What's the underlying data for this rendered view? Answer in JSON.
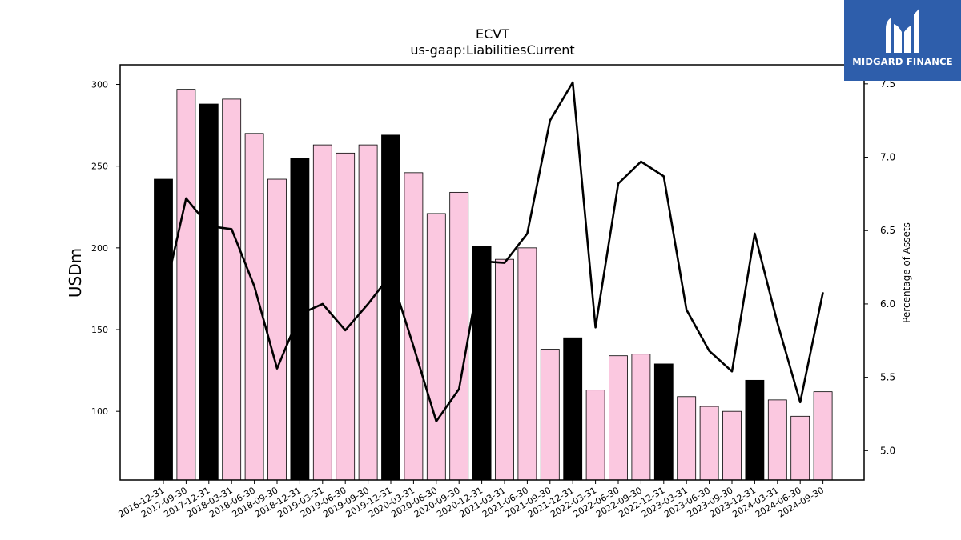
{
  "chart_data": {
    "type": "bar+line",
    "title": "ECVT",
    "subtitle": "us-gaap:LiabilitiesCurrent",
    "xlabel": "",
    "ylabel": "USDm",
    "y2label": "Percentage of Assets",
    "ylim": [
      58,
      312
    ],
    "y2lim": [
      4.8,
      7.63
    ],
    "yticks": [
      100,
      150,
      200,
      250,
      300
    ],
    "y2ticks": [
      "5.0",
      "5.5",
      "6.0",
      "6.5",
      "7.0",
      "7.5"
    ],
    "grid": false,
    "categories": [
      "2016-12-31",
      "2017-09-30",
      "2017-12-31",
      "2018-03-31",
      "2018-06-30",
      "2018-09-30",
      "2018-12-31",
      "2019-03-31",
      "2019-06-30",
      "2019-09-30",
      "2019-12-31",
      "2020-03-31",
      "2020-06-30",
      "2020-09-30",
      "2020-12-31",
      "2021-03-31",
      "2021-06-30",
      "2021-09-30",
      "2021-12-31",
      "2022-03-31",
      "2022-06-30",
      "2022-09-30",
      "2022-12-31",
      "2023-03-31",
      "2023-06-30",
      "2023-09-30",
      "2023-12-31",
      "2024-03-31",
      "2024-06-30",
      "2024-09-30"
    ],
    "series": [
      {
        "kind": "bar",
        "values": [
          242,
          297,
          288,
          291,
          270,
          242,
          255,
          263,
          258,
          263,
          269,
          246,
          221,
          234,
          201,
          193,
          200,
          138,
          145,
          113,
          134,
          135,
          129,
          109,
          103,
          100,
          119,
          107,
          97,
          112
        ],
        "colors": [
          "#000000",
          "#fbc8e0",
          "#000000",
          "#fbc8e0",
          "#fbc8e0",
          "#fbc8e0",
          "#000000",
          "#fbc8e0",
          "#fbc8e0",
          "#fbc8e0",
          "#000000",
          "#fbc8e0",
          "#fbc8e0",
          "#fbc8e0",
          "#000000",
          "#fbc8e0",
          "#fbc8e0",
          "#fbc8e0",
          "#000000",
          "#fbc8e0",
          "#fbc8e0",
          "#fbc8e0",
          "#000000",
          "#fbc8e0",
          "#fbc8e0",
          "#fbc8e0",
          "#000000",
          "#fbc8e0",
          "#fbc8e0",
          "#fbc8e0"
        ]
      },
      {
        "kind": "line",
        "axis": "right",
        "color": "#000000",
        "values": [
          6.03,
          6.72,
          6.53,
          6.51,
          6.12,
          5.56,
          5.93,
          6.0,
          5.82,
          6.0,
          6.2,
          5.71,
          5.2,
          5.42,
          6.29,
          6.28,
          6.48,
          7.25,
          7.51,
          5.84,
          6.82,
          6.97,
          6.87,
          5.96,
          5.68,
          5.54,
          6.48,
          5.87,
          5.33,
          6.08
        ]
      }
    ]
  },
  "logo": {
    "text": "MIDGARD FINANCE"
  }
}
